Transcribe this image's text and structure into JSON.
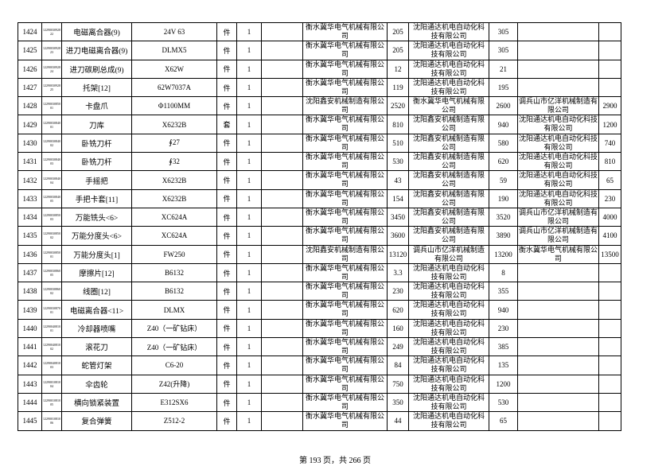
{
  "table": {
    "rows": [
      {
        "no": "1424",
        "code": "1229003092822",
        "name": "电磁离合器(9)",
        "model": "24V 63",
        "unit": "件",
        "qty": "1",
        "quotes": [
          {
            "supplier": "衡水冀华电气机械有限公司",
            "price": 205
          },
          {
            "supplier": "沈阳通达机电自动化科技有限公司",
            "price": 305
          }
        ]
      },
      {
        "no": "1425",
        "code": "1229003092823",
        "name": "进刀电磁离合器(9)",
        "model": "DLMX5",
        "unit": "件",
        "qty": "1",
        "quotes": [
          {
            "supplier": "衡水冀华电气机械有限公司",
            "price": 205
          },
          {
            "supplier": "沈阳通达机电自动化科技有限公司",
            "price": 305
          }
        ]
      },
      {
        "no": "1426",
        "code": "1229003092824",
        "name": "进刀碳刷总成(9)",
        "model": "X62W",
        "unit": "件",
        "qty": "1",
        "quotes": [
          {
            "supplier": "衡水冀华电气机械有限公司",
            "price": 12
          },
          {
            "supplier": "沈阳通达机电自动化科技有限公司",
            "price": 21
          }
        ]
      },
      {
        "no": "1427",
        "code": "1229003092825",
        "name": "托架[12]",
        "model": "62W7037A",
        "unit": "件",
        "qty": "1",
        "quotes": [
          {
            "supplier": "衡水冀华电气机械有限公司",
            "price": 119
          },
          {
            "supplier": "沈阳通达机电自动化科技有限公司",
            "price": 195
          }
        ]
      },
      {
        "no": "1428",
        "code": "1229003085001",
        "name": "卡盘爪",
        "model": "Φ1100MM",
        "unit": "件",
        "qty": "1",
        "quotes": [
          {
            "supplier": "沈阳鑫安机械制造有限公司",
            "price": 2520
          },
          {
            "supplier": "衡水冀华电气机械有限公司",
            "price": 2600
          },
          {
            "supplier": "调兵山市亿洋机械制造有限公司",
            "price": 2900
          }
        ]
      },
      {
        "no": "1429",
        "code": "1229003084001",
        "name": "刀库",
        "model": "X6232B",
        "unit": "套",
        "qty": "1",
        "quotes": [
          {
            "supplier": "衡水冀华电气机械有限公司",
            "price": 810
          },
          {
            "supplier": "沈阳鑫安机械制造有限公司",
            "price": 940
          },
          {
            "supplier": "沈阳通达机电自动化科技有限公司",
            "price": 1200
          }
        ]
      },
      {
        "no": "1430",
        "code": "1229003084002",
        "name": "卧铣刀杆",
        "model": "∮27",
        "unit": "件",
        "qty": "1",
        "quotes": [
          {
            "supplier": "衡水冀华电气机械有限公司",
            "price": 510
          },
          {
            "supplier": "沈阳鑫安机械制造有限公司",
            "price": 580
          },
          {
            "supplier": "沈阳通达机电自动化科技有限公司",
            "price": 740
          }
        ]
      },
      {
        "no": "1431",
        "code": "1229003084003",
        "name": "卧铣刀杆",
        "model": "∮32",
        "unit": "件",
        "qty": "1",
        "quotes": [
          {
            "supplier": "衡水冀华电气机械有限公司",
            "price": 530
          },
          {
            "supplier": "沈阳鑫安机械制造有限公司",
            "price": 620
          },
          {
            "supplier": "沈阳通达机电自动化科技有限公司",
            "price": 810
          }
        ]
      },
      {
        "no": "1432",
        "code": "1229003084004",
        "name": "手摇把",
        "model": "X6232B",
        "unit": "件",
        "qty": "1",
        "quotes": [
          {
            "supplier": "衡水冀华电气机械有限公司",
            "price": 43
          },
          {
            "supplier": "沈阳鑫安机械制造有限公司",
            "price": 59
          },
          {
            "supplier": "沈阳通达机电自动化科技有限公司",
            "price": 65
          }
        ]
      },
      {
        "no": "1433",
        "code": "1229003084005",
        "name": "手把卡套[11]",
        "model": "X6232B",
        "unit": "件",
        "qty": "1",
        "quotes": [
          {
            "supplier": "衡水冀华电气机械有限公司",
            "price": 154
          },
          {
            "supplier": "沈阳鑫安机械制造有限公司",
            "price": 190
          },
          {
            "supplier": "沈阳通达机电自动化科技有限公司",
            "price": 230
          }
        ]
      },
      {
        "no": "1434",
        "code": "1229003085003",
        "name": "万能铣头<6>",
        "model": "XC624A",
        "unit": "件",
        "qty": "1",
        "quotes": [
          {
            "supplier": "衡水冀华电气机械有限公司",
            "price": 3450
          },
          {
            "supplier": "沈阳鑫安机械制造有限公司",
            "price": 3520
          },
          {
            "supplier": "调兵山市亿洋机械制造有限公司",
            "price": 4000
          }
        ]
      },
      {
        "no": "1435",
        "code": "1229003085002",
        "name": "万能分度头<6>",
        "model": "XC624A",
        "unit": "件",
        "qty": "1",
        "quotes": [
          {
            "supplier": "衡水冀华电气机械有限公司",
            "price": 3600
          },
          {
            "supplier": "沈阳鑫安机械制造有限公司",
            "price": 3890
          },
          {
            "supplier": "调兵山市亿洋机械制造有限公司",
            "price": 4100
          }
        ]
      },
      {
        "no": "1436",
        "code": "1229003085001",
        "name": "万能分度头[1]",
        "model": "FW250",
        "unit": "件",
        "qty": "1",
        "quotes": [
          {
            "supplier": "沈阳鑫安机械制造有限公司",
            "price": 13120
          },
          {
            "supplier": "调兵山市亿洋机械制造有限公司",
            "price": 13200
          },
          {
            "supplier": "衡水冀华电气机械有限公司",
            "price": 13500
          }
        ]
      },
      {
        "no": "1437",
        "code": "1229003086005",
        "name": "摩擦片[12]",
        "model": "B6132",
        "unit": "件",
        "qty": "1",
        "quotes": [
          {
            "supplier": "衡水冀华电气机械有限公司",
            "price": 3.3
          },
          {
            "supplier": "沈阳通达机电自动化科技有限公司",
            "price": 8
          }
        ]
      },
      {
        "no": "1438",
        "code": "1229003086002",
        "name": "线圈[12]",
        "model": "B6132",
        "unit": "件",
        "qty": "1",
        "quotes": [
          {
            "supplier": "衡水冀华电气机械有限公司",
            "price": 230
          },
          {
            "supplier": "沈阳通达机电自动化科技有限公司",
            "price": 355
          }
        ]
      },
      {
        "no": "1439",
        "code": "1229003087001",
        "name": "电磁离合器<11>",
        "model": "DLMX",
        "unit": "件",
        "qty": "1",
        "quotes": [
          {
            "supplier": "衡水冀华电气机械有限公司",
            "price": 620
          },
          {
            "supplier": "沈阳通达机电自动化科技有限公司",
            "price": 940
          }
        ]
      },
      {
        "no": "1440",
        "code": "1229004081001",
        "name": "冷却器喷嘴",
        "model": "Z40（一矿钻床）",
        "unit": "件",
        "qty": "1",
        "quotes": [
          {
            "supplier": "衡水冀华电气机械有限公司",
            "price": 160
          },
          {
            "supplier": "沈阳通达机电自动化科技有限公司",
            "price": 230
          }
        ]
      },
      {
        "no": "1441",
        "code": "1229004081002",
        "name": "滚花刀",
        "model": "Z40（一矿钻床）",
        "unit": "件",
        "qty": "1",
        "quotes": [
          {
            "supplier": "衡水冀华电气机械有限公司",
            "price": 249
          },
          {
            "supplier": "沈阳通达机电自动化科技有限公司",
            "price": 385
          }
        ]
      },
      {
        "no": "1442",
        "code": "1229004081003",
        "name": "蛇管灯架",
        "model": "C6-20",
        "unit": "件",
        "qty": "1",
        "quotes": [
          {
            "supplier": "衡水冀华电气机械有限公司",
            "price": 84
          },
          {
            "supplier": "沈阳通达机电自动化科技有限公司",
            "price": 135
          }
        ]
      },
      {
        "no": "1443",
        "code": "1229001081004",
        "name": "伞齿轮",
        "model": "Z42(升降)",
        "unit": "件",
        "qty": "1",
        "quotes": [
          {
            "supplier": "衡水冀华电气机械有限公司",
            "price": 750
          },
          {
            "supplier": "沈阳通达机电自动化科技有限公司",
            "price": 1200
          }
        ]
      },
      {
        "no": "1444",
        "code": "1229001081005",
        "name": "横向锁紧装置",
        "model": "E312SX6",
        "unit": "件",
        "qty": "1",
        "quotes": [
          {
            "supplier": "衡水冀华电气机械有限公司",
            "price": 350
          },
          {
            "supplier": "沈阳通达机电自动化科技有限公司",
            "price": 530
          }
        ]
      },
      {
        "no": "1445",
        "code": "1229001081006",
        "name": "复合弹簧",
        "model": "Z512-2",
        "unit": "件",
        "qty": "1",
        "quotes": [
          {
            "supplier": "衡水冀华电气机械有限公司",
            "price": 44
          },
          {
            "supplier": "沈阳通达机电自动化科技有限公司",
            "price": 65
          }
        ]
      }
    ]
  },
  "footer": {
    "page": "第 193 页，共 266 页"
  }
}
